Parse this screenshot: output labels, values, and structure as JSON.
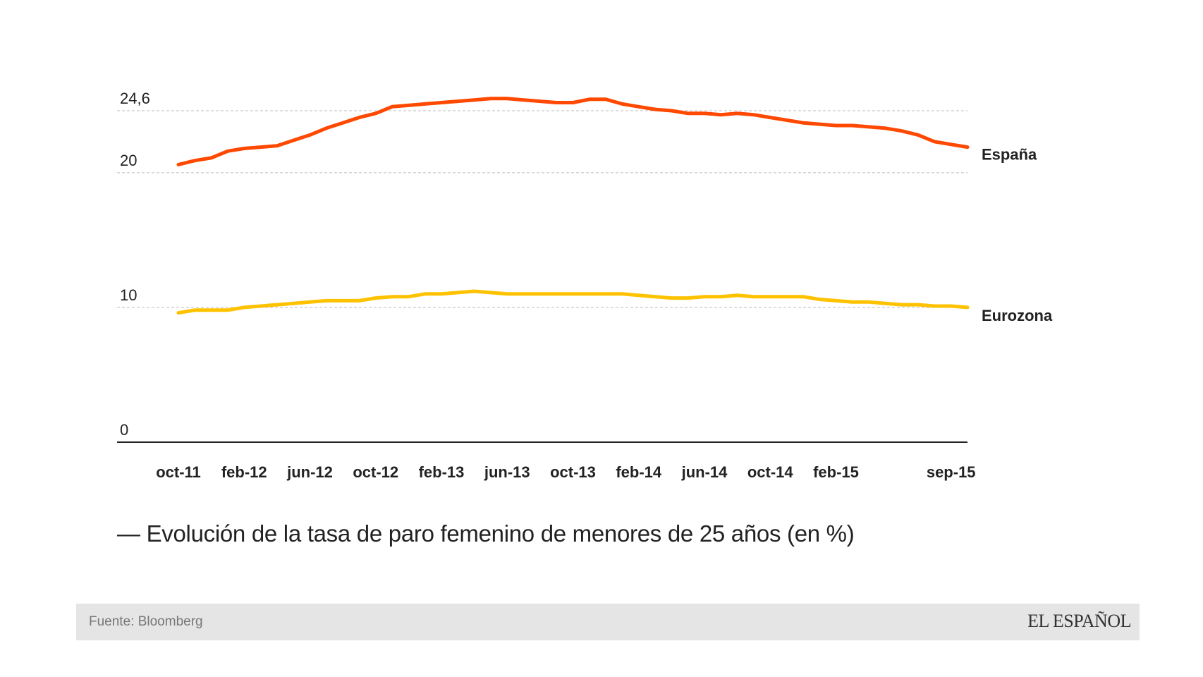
{
  "chart_data": {
    "type": "line",
    "title": "— Evolución de la tasa de paro femenino de menores de 25 años (en %)",
    "xlabel": "",
    "ylabel": "",
    "ylim": [
      0,
      24.6
    ],
    "y_ticks": [
      "0",
      "10",
      "20",
      "24,6"
    ],
    "y_tick_values": [
      0,
      10,
      20,
      24.6
    ],
    "x_tick_labels": [
      "oct-11",
      "feb-12",
      "jun-12",
      "oct-12",
      "feb-13",
      "jun-13",
      "oct-13",
      "feb-14",
      "jun-14",
      "oct-14",
      "feb-15",
      "sep-15"
    ],
    "x_tick_indices": [
      0,
      4,
      8,
      12,
      16,
      20,
      24,
      28,
      32,
      36,
      40,
      47
    ],
    "grid": true,
    "series": [
      {
        "name": "España",
        "color": "#ff4800",
        "values": [
          20.6,
          20.9,
          21.1,
          21.6,
          21.8,
          21.9,
          22.0,
          22.4,
          22.8,
          23.3,
          23.7,
          24.1,
          24.4,
          24.9,
          25.0,
          25.1,
          25.2,
          25.3,
          25.4,
          25.5,
          25.5,
          25.4,
          25.3,
          25.2,
          25.2,
          25.45,
          25.45,
          25.1,
          24.9,
          24.7,
          24.6,
          24.4,
          24.4,
          24.3,
          24.4,
          24.3,
          24.1,
          23.9,
          23.7,
          23.6,
          23.5,
          23.5,
          23.4,
          23.3,
          23.1,
          22.8,
          22.3,
          22.1,
          21.9
        ],
        "label_position": "right"
      },
      {
        "name": "Eurozona",
        "color": "#ffc200",
        "values": [
          9.6,
          9.8,
          9.8,
          9.8,
          10.0,
          10.1,
          10.2,
          10.3,
          10.4,
          10.5,
          10.5,
          10.5,
          10.7,
          10.8,
          10.8,
          11.0,
          11.0,
          11.1,
          11.2,
          11.1,
          11.0,
          11.0,
          11.0,
          11.0,
          11.0,
          11.0,
          11.0,
          11.0,
          10.9,
          10.8,
          10.7,
          10.7,
          10.8,
          10.8,
          10.9,
          10.8,
          10.8,
          10.8,
          10.8,
          10.6,
          10.5,
          10.4,
          10.4,
          10.3,
          10.2,
          10.2,
          10.1,
          10.1,
          10.0
        ],
        "label_position": "right"
      }
    ]
  },
  "footer": {
    "source": "Fuente: Bloomberg",
    "brand": "EL ESPAÑOL"
  },
  "colors": {
    "espana": "#ff4800",
    "eurozona": "#ffc200",
    "footer_bg": "#e5e5e5"
  }
}
